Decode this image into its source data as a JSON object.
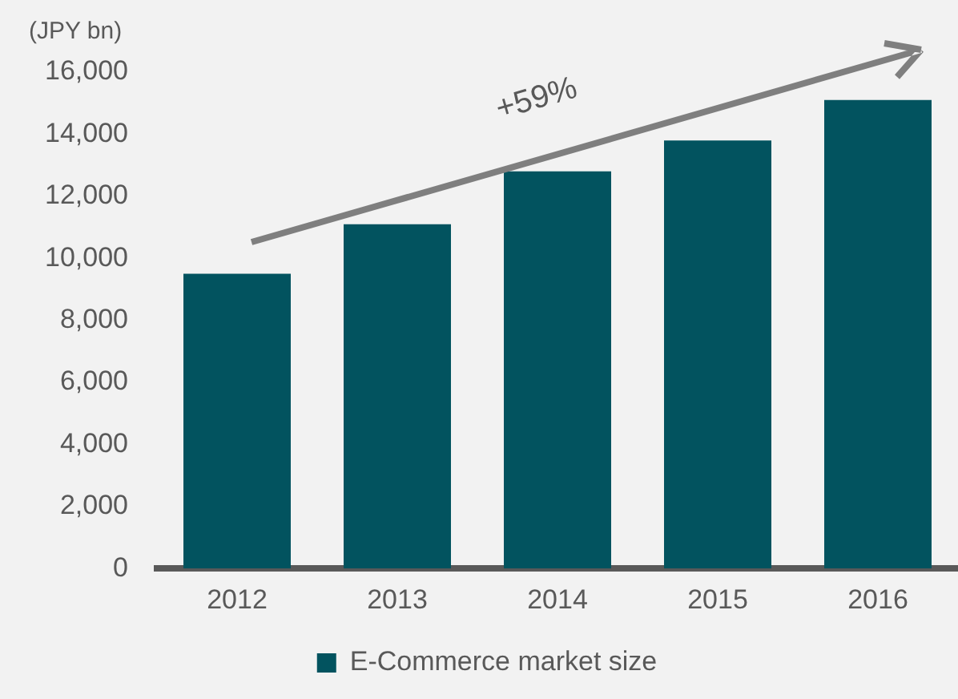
{
  "chart_data": {
    "type": "bar",
    "ylabel": "(JPY bn)",
    "annotations": [
      "+59%"
    ],
    "categories": [
      "2012",
      "2013",
      "2014",
      "2015",
      "2016"
    ],
    "series": [
      {
        "name": "E-Commerce market size",
        "color": "#02535f",
        "values": [
          9500,
          11100,
          12800,
          13800,
          15100
        ]
      }
    ],
    "ylim": [
      0,
      16000
    ],
    "yticks": [
      0,
      {
        "value": 2000,
        "label": "2,000"
      },
      {
        "value": 4000,
        "label": "4,000"
      },
      {
        "value": 6000,
        "label": "6,000"
      },
      {
        "value": 8000,
        "label": "8,000"
      },
      {
        "value": 10000,
        "label": "10,000"
      },
      {
        "value": 12000,
        "label": "12,000"
      },
      {
        "value": 14000,
        "label": "14,000"
      },
      {
        "value": 16000,
        "label": "16,000"
      }
    ],
    "grid": false,
    "legend": "bottom"
  }
}
